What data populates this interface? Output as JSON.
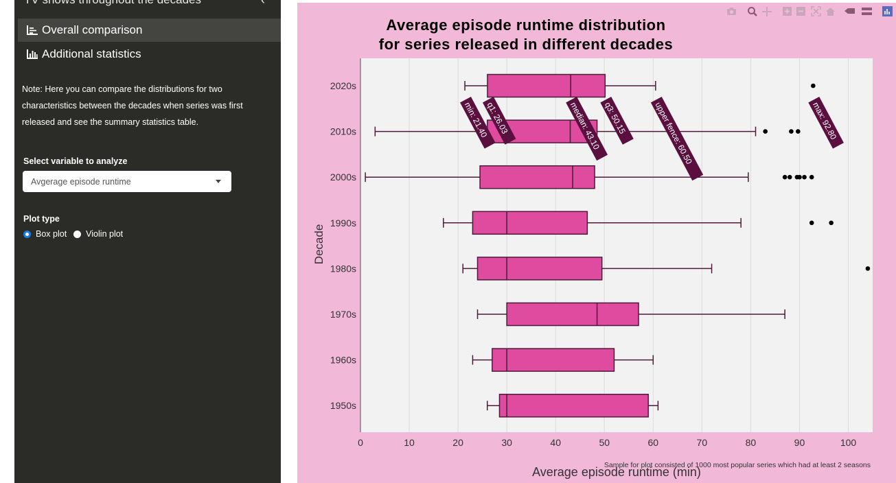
{
  "sidebar": {
    "cut_item_label": "TV shows throughout the decades",
    "menu": [
      {
        "label": "Overall comparison",
        "icon": "line-chart-icon",
        "active": true
      },
      {
        "label": "Additional statistics",
        "icon": "bar-chart-icon",
        "active": false
      }
    ],
    "note": "Note: Here you can compare the distributions for two characteristics between the decades when series was first released and see the summary statistics table.",
    "select_label": "Select variable to analyze",
    "select_value": "Avgerage episode runtime",
    "plot_type_label": "Plot type",
    "plot_type_options": [
      "Box plot",
      "Violin plot"
    ],
    "plot_type_selected": "Box plot"
  },
  "toolbar": {
    "icons": [
      "camera-icon",
      "zoom-icon",
      "pan-icon",
      "zoom-in-icon",
      "zoom-out-icon",
      "autoscale-icon",
      "reset-axes-icon",
      "spike-lines-icon",
      "compare-hover-icon",
      "plotly-logo-icon"
    ]
  },
  "colors": {
    "sidebar_bg": "#2b2c27",
    "panel_bg": "#f2b8d8",
    "plot_bg": "#f2f2f2",
    "box_fill": "#df4b9e",
    "box_line": "#4d1a3c",
    "tooltip_bg": "#5a0f3f"
  },
  "chart_data": {
    "type": "box",
    "title_line1": "Average episode runtime distribution",
    "title_line2": "for series released in different decades",
    "xlabel": "Average episode runtime (min)",
    "ylabel": "Decade",
    "xlim": [
      0,
      105
    ],
    "xticks": [
      0,
      10,
      20,
      30,
      40,
      50,
      60,
      70,
      80,
      90,
      100
    ],
    "caption": "Sample for plot consisted of 1000 most popular series which had at least 2 seasons",
    "orientation": "horizontal",
    "categories": [
      "2020s",
      "2010s",
      "2000s",
      "1990s",
      "1980s",
      "1970s",
      "1960s",
      "1950s"
    ],
    "boxes": [
      {
        "name": "2020s",
        "lowerfence": 21.4,
        "q1": 26.03,
        "median": 43.1,
        "q3": 50.15,
        "upperfence": 60.5,
        "outliers": [
          92.8
        ]
      },
      {
        "name": "2010s",
        "lowerfence": 3,
        "q1": 26,
        "median": 43,
        "q3": 48.5,
        "upperfence": 81,
        "outliers": [
          83,
          88.3,
          89.7
        ]
      },
      {
        "name": "2000s",
        "lowerfence": 1,
        "q1": 24.5,
        "median": 43.5,
        "q3": 48,
        "upperfence": 79.5,
        "outliers": [
          87,
          88,
          89.5,
          90,
          91,
          92.5
        ]
      },
      {
        "name": "1990s",
        "lowerfence": 17,
        "q1": 23,
        "median": 30,
        "q3": 46.5,
        "upperfence": 78,
        "outliers": [
          92.5,
          96.5
        ]
      },
      {
        "name": "1980s",
        "lowerfence": 21,
        "q1": 24,
        "median": 30,
        "q3": 49.5,
        "upperfence": 72,
        "outliers": [
          104
        ]
      },
      {
        "name": "1970s",
        "lowerfence": 24,
        "q1": 30,
        "median": 48.5,
        "q3": 57,
        "upperfence": 87,
        "outliers": []
      },
      {
        "name": "1960s",
        "lowerfence": 23,
        "q1": 27,
        "median": 30,
        "q3": 52,
        "upperfence": 60,
        "outliers": []
      },
      {
        "name": "1950s",
        "lowerfence": 26,
        "q1": 28.5,
        "median": 30,
        "q3": 59,
        "upperfence": 61,
        "outliers": []
      }
    ],
    "hover_labels": [
      {
        "text": "min: 21.40",
        "x": 21.4
      },
      {
        "text": "q1: 26.03",
        "x": 26.03
      },
      {
        "text": "median: 43.10",
        "x": 43.1
      },
      {
        "text": "q3: 50.15",
        "x": 50.15
      },
      {
        "text": "upper fence: 60.50",
        "x": 60.5
      },
      {
        "text": "max: 92.80",
        "x": 92.8
      }
    ]
  }
}
